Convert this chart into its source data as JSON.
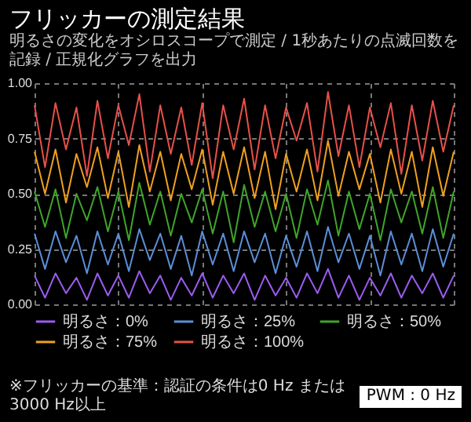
{
  "chart_data": {
    "type": "line",
    "title": "フリッカーの測定結果",
    "subtitle": "明るさの変化をオシロスコープで測定 / 1秒あたりの点滅回数を記録 / 正規化グラフを出力",
    "annotations": [
      "PWM : 0 Hz",
      "※フリッカーの基準：認証の条件は0 Hz または 3000 Hz以上"
    ],
    "categories": [
      null,
      null,
      null,
      null,
      null,
      null,
      null,
      null,
      null,
      null,
      null,
      null,
      null,
      null,
      null,
      null,
      null,
      null,
      null,
      null,
      null,
      null,
      null,
      null,
      null,
      null,
      null,
      null,
      null,
      null,
      null,
      null,
      null,
      null,
      null,
      null,
      null,
      null,
      null,
      null,
      null
    ],
    "ylim": [
      0,
      1
    ],
    "yticks": [
      {
        "value": 0,
        "label": "0.00"
      },
      {
        "value": 0.25,
        "label": "0.25"
      },
      {
        "value": 0.5,
        "label": "0.50"
      },
      {
        "value": 0.75,
        "label": "0.75"
      },
      {
        "value": 1,
        "label": "1.00"
      }
    ],
    "grid": true,
    "legend": "bottom",
    "line_style": "solid",
    "series": [
      {
        "name": "明るさ：0%",
        "color": "#9b5cf0",
        "values": [
          0.13,
          0.03,
          0.14,
          0.05,
          0.12,
          0.02,
          0.14,
          0.04,
          0.13,
          0.03,
          0.15,
          0.05,
          0.13,
          0.02,
          0.12,
          0.04,
          0.14,
          0.03,
          0.13,
          0.05,
          0.14,
          0.02,
          0.13,
          0.04,
          0.12,
          0.03,
          0.14,
          0.05,
          0.16,
          0.03,
          0.13,
          0.02,
          0.12,
          0.04,
          0.14,
          0.03,
          0.13,
          0.05,
          0.14,
          0.03,
          0.13
        ]
      },
      {
        "name": "明るさ：25%",
        "color": "#5b8fd8",
        "values": [
          0.32,
          0.16,
          0.33,
          0.19,
          0.31,
          0.14,
          0.33,
          0.18,
          0.32,
          0.15,
          0.34,
          0.2,
          0.32,
          0.16,
          0.31,
          0.13,
          0.33,
          0.18,
          0.32,
          0.15,
          0.33,
          0.19,
          0.32,
          0.14,
          0.31,
          0.17,
          0.33,
          0.15,
          0.35,
          0.19,
          0.32,
          0.16,
          0.31,
          0.13,
          0.33,
          0.18,
          0.32,
          0.15,
          0.34,
          0.17,
          0.32
        ]
      },
      {
        "name": "明るさ：50%",
        "color": "#3fa52a",
        "values": [
          0.51,
          0.35,
          0.52,
          0.3,
          0.5,
          0.38,
          0.53,
          0.33,
          0.51,
          0.29,
          0.55,
          0.36,
          0.51,
          0.31,
          0.5,
          0.37,
          0.52,
          0.32,
          0.51,
          0.28,
          0.54,
          0.35,
          0.51,
          0.33,
          0.5,
          0.3,
          0.52,
          0.36,
          0.56,
          0.31,
          0.51,
          0.34,
          0.5,
          0.29,
          0.52,
          0.37,
          0.51,
          0.32,
          0.53,
          0.3,
          0.51
        ]
      },
      {
        "name": "明るさ：75%",
        "color": "#f0a020",
        "values": [
          0.69,
          0.5,
          0.7,
          0.46,
          0.68,
          0.53,
          0.71,
          0.48,
          0.69,
          0.44,
          0.72,
          0.51,
          0.69,
          0.47,
          0.68,
          0.52,
          0.7,
          0.45,
          0.69,
          0.5,
          0.71,
          0.48,
          0.69,
          0.43,
          0.68,
          0.51,
          0.7,
          0.47,
          0.74,
          0.49,
          0.69,
          0.52,
          0.68,
          0.46,
          0.7,
          0.5,
          0.69,
          0.44,
          0.71,
          0.49,
          0.69
        ]
      },
      {
        "name": "明るさ：100%",
        "color": "#e8504a",
        "values": [
          0.9,
          0.62,
          0.91,
          0.7,
          0.89,
          0.58,
          0.92,
          0.66,
          0.9,
          0.72,
          0.95,
          0.6,
          0.9,
          0.68,
          0.89,
          0.63,
          0.91,
          0.57,
          0.9,
          0.7,
          0.93,
          0.61,
          0.9,
          0.66,
          0.89,
          0.74,
          0.91,
          0.6,
          0.96,
          0.67,
          0.9,
          0.62,
          0.89,
          0.71,
          0.91,
          0.59,
          0.9,
          0.65,
          0.92,
          0.69,
          0.9
        ]
      }
    ]
  }
}
